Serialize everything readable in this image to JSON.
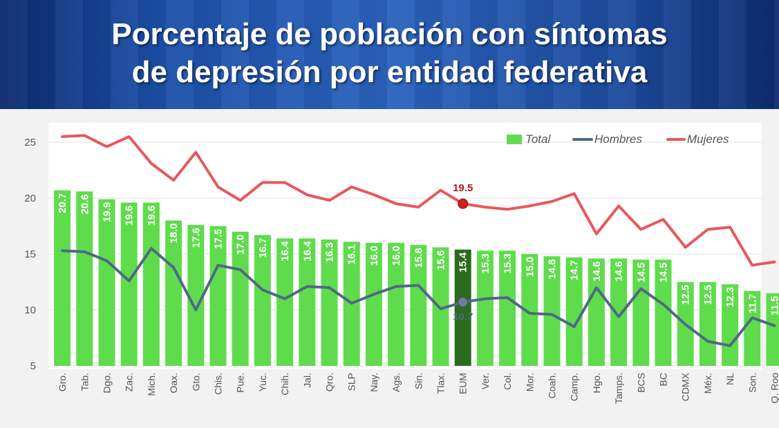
{
  "header": {
    "title_line1": "Porcentaje de población con síntomas",
    "title_line2": "de depresión por entidad federativa"
  },
  "colors": {
    "total_bar": "#5fdc4c",
    "highlight_bar": "#2a6b1f",
    "hombres_line": "#4e6a84",
    "mujeres_line": "#e8575b",
    "header_bg": "#1c4fa8"
  },
  "chart_data": {
    "type": "bar",
    "title": "Porcentaje de población con síntomas de depresión por entidad federativa",
    "xlabel": "",
    "ylabel": "",
    "ylim": [
      5,
      25
    ],
    "yticks": [
      5,
      10,
      15,
      20,
      25
    ],
    "grid": true,
    "legend_position": "top-right",
    "categories": [
      "Gro.",
      "Tab.",
      "Dgo.",
      "Zac.",
      "Mich.",
      "Oax.",
      "Gto.",
      "Chis.",
      "Pue.",
      "Yuc.",
      "Chih.",
      "Jal.",
      "Qro.",
      "SLP",
      "Nay.",
      "Ags.",
      "Sin.",
      "Tlax.",
      "EUM",
      "Ver.",
      "Col.",
      "Mor.",
      "Coah.",
      "Camp.",
      "Hgo.",
      "Tamps.",
      "BCS",
      "BC",
      "CDMX",
      "Méx.",
      "NL",
      "Son.",
      "Q. Roo"
    ],
    "highlight_category": "EUM",
    "series": [
      {
        "name": "Total",
        "kind": "bar",
        "color": "#5fdc4c",
        "values": [
          20.7,
          20.6,
          19.9,
          19.6,
          19.6,
          18.0,
          17.6,
          17.5,
          17.0,
          16.7,
          16.4,
          16.4,
          16.3,
          16.1,
          16.0,
          16.0,
          15.8,
          15.6,
          15.4,
          15.3,
          15.3,
          15.0,
          14.8,
          14.7,
          14.6,
          14.6,
          14.5,
          14.5,
          12.5,
          12.5,
          12.3,
          11.7,
          11.5
        ],
        "value_labels": [
          "20.7",
          "20.6",
          "19.9",
          "19.6",
          "19.6",
          "18.0",
          "17.6",
          "17.5",
          "17.0",
          "16.7",
          "16.4",
          "16.4",
          "16.3",
          "16.1",
          "16.0",
          "16.0",
          "15.8",
          "15.6",
          "15.4",
          "15.3",
          "15.3",
          "15.0",
          "14.8",
          "14.7",
          "14.6",
          "14.6",
          "14.5",
          "14.5",
          "12.5",
          "12.5",
          "12.3",
          "11.7",
          "11.5"
        ]
      },
      {
        "name": "Hombres",
        "kind": "line",
        "color": "#4e6a84",
        "values": [
          15.3,
          15.2,
          14.4,
          12.6,
          15.5,
          13.8,
          10.0,
          14.0,
          13.6,
          11.8,
          11.0,
          12.1,
          12.0,
          10.6,
          11.4,
          12.1,
          12.2,
          10.1,
          10.7,
          11.0,
          11.1,
          9.7,
          9.6,
          8.5,
          12.0,
          9.4,
          11.9,
          10.5,
          8.7,
          7.2,
          6.8,
          9.3,
          8.6
        ],
        "marked_label": "10.7"
      },
      {
        "name": "Mujeres",
        "kind": "line",
        "color": "#e8575b",
        "values": [
          25.5,
          25.6,
          24.6,
          25.5,
          23.1,
          21.6,
          24.1,
          21.0,
          19.8,
          21.4,
          21.4,
          20.3,
          19.8,
          21.0,
          20.3,
          19.5,
          19.2,
          20.7,
          19.5,
          19.2,
          19.0,
          19.3,
          19.7,
          20.4,
          16.8,
          19.3,
          17.2,
          18.1,
          15.6,
          17.2,
          17.4,
          14.0,
          14.3
        ],
        "marked_label": "19.5"
      }
    ]
  }
}
